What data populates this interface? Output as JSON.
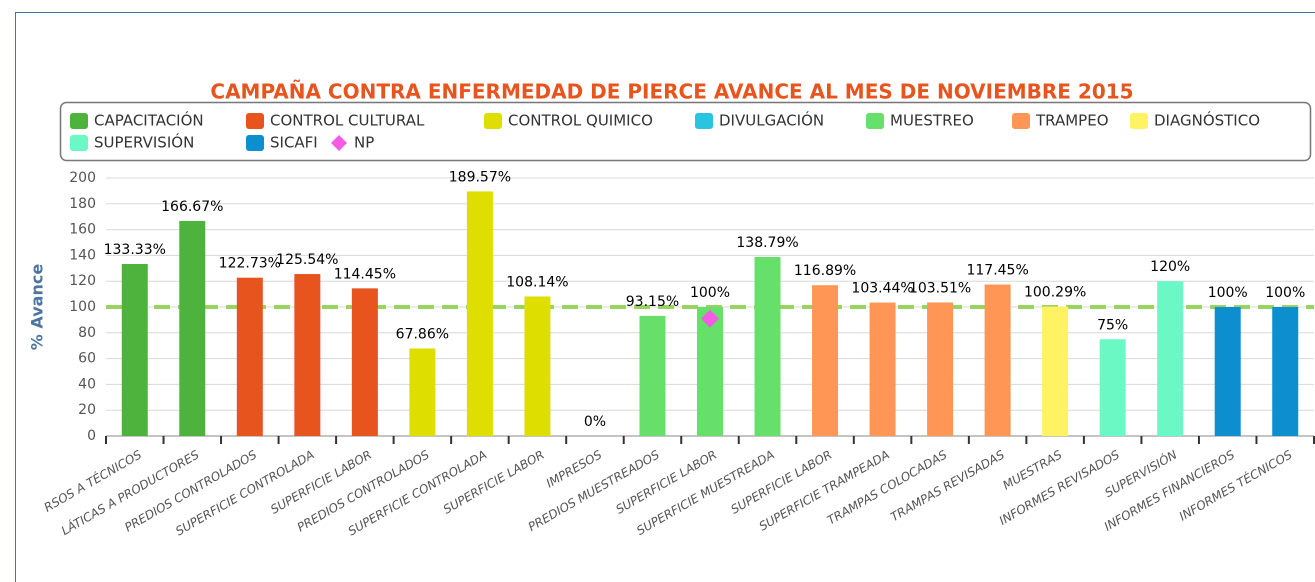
{
  "chart_data": {
    "type": "bar",
    "title": "CAMPAÑA CONTRA ENFERMEDAD DE PIERCE AVANCE AL MES DE NOVIEMBRE 2015",
    "y_axis_label": "% Avance",
    "categories": [
      "RSOS A TÉCNICOS",
      "LÁTICAS A PRODUCTORES",
      "PREDIOS CONTROLADOS",
      "SUPERFICIE CONTROLADA",
      "SUPERFICIE LABOR",
      "PREDIOS CONTROLADOS",
      "SUPERFICIE CONTROLADA",
      "SUPERFICIE LABOR",
      "IMPRESOS",
      "PREDIOS MUESTREADOS",
      "SUPERFICIE LABOR",
      "SUPERFICIE MUESTREADA",
      "SUPERFICIE LABOR",
      "SUPERFICIE TRAMPEADA",
      "TRAMPAS COLOCADAS",
      "TRAMPAS REVISADAS",
      "MUESTRAS",
      "INFORMES REVISADOS",
      "SUPERVISIÓN",
      "INFORMES FINANCIEROS",
      "INFORMES TÉCNICOS"
    ],
    "series": [
      {
        "name": "CAPACITACIÓN",
        "color": "#4db33d",
        "values": [
          133.33,
          166.67,
          null,
          null,
          null,
          null,
          null,
          null,
          null,
          null,
          null,
          null,
          null,
          null,
          null,
          null,
          null,
          null,
          null,
          null,
          null
        ],
        "value_labels": [
          "133.33%",
          "166.67%",
          null,
          null,
          null,
          null,
          null,
          null,
          null,
          null,
          null,
          null,
          null,
          null,
          null,
          null,
          null,
          null,
          null,
          null,
          null
        ]
      },
      {
        "name": "CONTROL CULTURAL",
        "color": "#e8541e",
        "values": [
          null,
          null,
          122.73,
          125.54,
          114.45,
          null,
          null,
          null,
          null,
          null,
          null,
          null,
          null,
          null,
          null,
          null,
          null,
          null,
          null,
          null,
          null
        ],
        "value_labels": [
          null,
          null,
          "122.73%",
          "125.54%",
          "114.45%",
          null,
          null,
          null,
          null,
          null,
          null,
          null,
          null,
          null,
          null,
          null,
          null,
          null,
          null,
          null,
          null
        ]
      },
      {
        "name": "CONTROL QUIMICO",
        "color": "#dede00",
        "values": [
          null,
          null,
          null,
          null,
          null,
          67.86,
          189.57,
          108.14,
          null,
          null,
          null,
          null,
          null,
          null,
          null,
          null,
          null,
          null,
          null,
          null,
          null
        ],
        "value_labels": [
          null,
          null,
          null,
          null,
          null,
          "67.86%",
          "189.57%",
          "108.14%",
          null,
          null,
          null,
          null,
          null,
          null,
          null,
          null,
          null,
          null,
          null,
          null,
          null
        ]
      },
      {
        "name": "DIVULGACIÓN",
        "color": "#29c4e0",
        "values": [
          null,
          null,
          null,
          null,
          null,
          null,
          null,
          null,
          0,
          null,
          null,
          null,
          null,
          null,
          null,
          null,
          null,
          null,
          null,
          null,
          null
        ],
        "value_labels": [
          null,
          null,
          null,
          null,
          null,
          null,
          null,
          null,
          "0%",
          null,
          null,
          null,
          null,
          null,
          null,
          null,
          null,
          null,
          null,
          null,
          null
        ]
      },
      {
        "name": "MUESTREO",
        "color": "#66e06a",
        "values": [
          null,
          null,
          null,
          null,
          null,
          null,
          null,
          null,
          null,
          93.15,
          100,
          138.79,
          null,
          null,
          null,
          null,
          null,
          null,
          null,
          null,
          null
        ],
        "value_labels": [
          null,
          null,
          null,
          null,
          null,
          null,
          null,
          null,
          null,
          "93.15%",
          "100%",
          "138.79%",
          null,
          null,
          null,
          null,
          null,
          null,
          null,
          null,
          null
        ]
      },
      {
        "name": "TRAMPEO",
        "color": "#ff9655",
        "values": [
          null,
          null,
          null,
          null,
          null,
          null,
          null,
          null,
          null,
          null,
          null,
          null,
          116.89,
          103.44,
          103.51,
          117.45,
          null,
          null,
          null,
          null,
          null
        ],
        "value_labels": [
          null,
          null,
          null,
          null,
          null,
          null,
          null,
          null,
          null,
          null,
          null,
          null,
          "116.89%",
          "103.44%",
          "103.51%",
          "117.45%",
          null,
          null,
          null,
          null,
          null
        ]
      },
      {
        "name": "DIAGNÓSTICO",
        "color": "#fff263",
        "values": [
          null,
          null,
          null,
          null,
          null,
          null,
          null,
          null,
          null,
          null,
          null,
          null,
          null,
          null,
          null,
          null,
          100.29,
          null,
          null,
          null,
          null
        ],
        "value_labels": [
          null,
          null,
          null,
          null,
          null,
          null,
          null,
          null,
          null,
          null,
          null,
          null,
          null,
          null,
          null,
          null,
          "100.29%",
          null,
          null,
          null,
          null
        ]
      },
      {
        "name": "SUPERVISIÓN",
        "color": "#6af9c4",
        "values": [
          null,
          null,
          null,
          null,
          null,
          null,
          null,
          null,
          null,
          null,
          null,
          null,
          null,
          null,
          null,
          null,
          null,
          75,
          120,
          null,
          null
        ],
        "value_labels": [
          null,
          null,
          null,
          null,
          null,
          null,
          null,
          null,
          null,
          null,
          null,
          null,
          null,
          null,
          null,
          null,
          null,
          "75%",
          "120%",
          null,
          null
        ]
      },
      {
        "name": "SICAFI",
        "color": "#0d8ecf",
        "values": [
          null,
          null,
          null,
          null,
          null,
          null,
          null,
          null,
          null,
          null,
          null,
          null,
          null,
          null,
          null,
          null,
          null,
          null,
          null,
          100,
          100
        ],
        "value_labels": [
          null,
          null,
          null,
          null,
          null,
          null,
          null,
          null,
          null,
          null,
          null,
          null,
          null,
          null,
          null,
          null,
          null,
          null,
          null,
          "100%",
          "100%"
        ]
      },
      {
        "name": "NP",
        "color": "#f45ce3",
        "marker": "diamond",
        "values": [
          null,
          null,
          null,
          null,
          null,
          null,
          null,
          null,
          null,
          null,
          91,
          null,
          null,
          null,
          null,
          null,
          null,
          null,
          null,
          null,
          null
        ]
      }
    ],
    "reference_line": 100,
    "ylim": [
      0,
      200
    ],
    "yticks": [
      0,
      20,
      40,
      60,
      80,
      100,
      120,
      140,
      160,
      180,
      200
    ],
    "grid": true
  }
}
